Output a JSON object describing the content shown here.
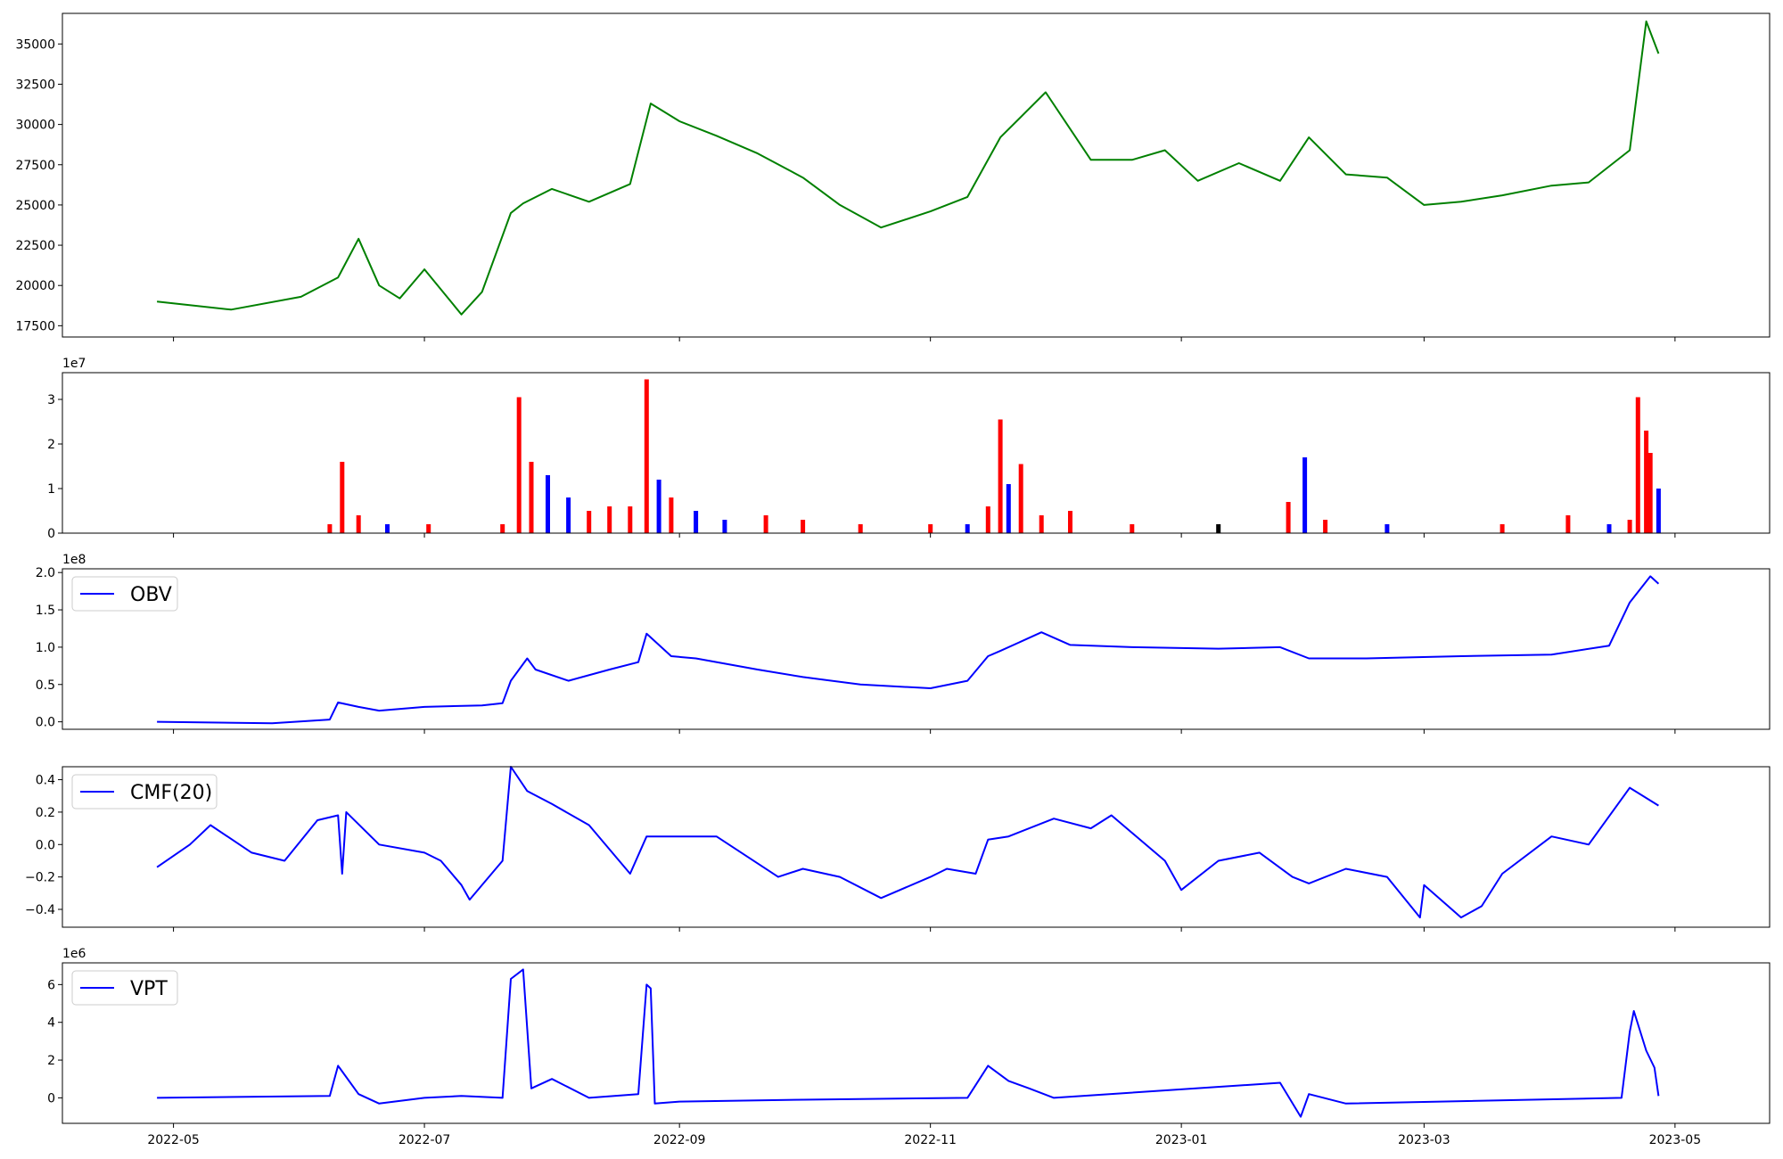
{
  "chart_data": [
    {
      "type": "line",
      "panel": "price",
      "line_color": "#008000",
      "ylim": [
        16800,
        36900
      ],
      "yticks": [
        17500,
        20000,
        22500,
        25000,
        27500,
        30000,
        32500,
        35000
      ],
      "ytick_labels": [
        "17500",
        "20000",
        "22500",
        "25000",
        "27500",
        "30000",
        "32500",
        "35000"
      ],
      "x": [
        "2022-04-27",
        "2022-05-15",
        "2022-06-01",
        "2022-06-10",
        "2022-06-15",
        "2022-06-20",
        "2022-06-25",
        "2022-07-01",
        "2022-07-10",
        "2022-07-15",
        "2022-07-22",
        "2022-07-25",
        "2022-08-01",
        "2022-08-10",
        "2022-08-20",
        "2022-08-25",
        "2022-09-01",
        "2022-09-10",
        "2022-09-20",
        "2022-10-01",
        "2022-10-10",
        "2022-10-20",
        "2022-11-01",
        "2022-11-10",
        "2022-11-18",
        "2022-11-29",
        "2022-12-10",
        "2022-12-20",
        "2022-12-28",
        "2023-01-05",
        "2023-01-15",
        "2023-01-25",
        "2023-02-01",
        "2023-02-10",
        "2023-02-20",
        "2023-03-01",
        "2023-03-10",
        "2023-03-20",
        "2023-04-01",
        "2023-04-10",
        "2023-04-20",
        "2023-04-24",
        "2023-04-27"
      ],
      "values": [
        19000,
        18500,
        19300,
        20500,
        22900,
        20000,
        19200,
        21000,
        18200,
        19600,
        24500,
        25100,
        26000,
        25200,
        26300,
        31300,
        30200,
        29300,
        28200,
        26700,
        25000,
        23600,
        24600,
        25500,
        29200,
        32000,
        27800,
        27800,
        28400,
        26500,
        27600,
        26500,
        29200,
        26900,
        26700,
        25000,
        25200,
        25600,
        26200,
        26400,
        28400,
        36400,
        34400
      ]
    },
    {
      "type": "bar",
      "panel": "volume",
      "offset_label": "1e7",
      "ylim": [
        0,
        3.6
      ],
      "yticks": [
        0,
        1,
        2,
        3
      ],
      "ytick_labels": [
        "0",
        "1",
        "2",
        "3"
      ],
      "colors": {
        "up": "#ff0000",
        "down": "#0000ff",
        "flat": "#000000"
      },
      "x": [
        "2022-06-08",
        "2022-06-11",
        "2022-06-15",
        "2022-06-22",
        "2022-07-02",
        "2022-07-20",
        "2022-07-24",
        "2022-07-27",
        "2022-07-31",
        "2022-08-05",
        "2022-08-10",
        "2022-08-15",
        "2022-08-20",
        "2022-08-24",
        "2022-08-27",
        "2022-08-30",
        "2022-09-05",
        "2022-09-12",
        "2022-09-22",
        "2022-10-01",
        "2022-10-15",
        "2022-11-01",
        "2022-11-10",
        "2022-11-15",
        "2022-11-18",
        "2022-11-20",
        "2022-11-23",
        "2022-11-28",
        "2022-12-05",
        "2022-12-20",
        "2023-01-10",
        "2023-01-27",
        "2023-01-31",
        "2023-02-05",
        "2023-02-20",
        "2023-03-20",
        "2023-04-05",
        "2023-04-15",
        "2023-04-20",
        "2023-04-22",
        "2023-04-24",
        "2023-04-25",
        "2023-04-27"
      ],
      "values": [
        0.2,
        1.6,
        0.4,
        0.2,
        0.2,
        0.2,
        3.05,
        1.6,
        1.3,
        0.8,
        0.5,
        0.6,
        0.6,
        3.45,
        1.2,
        0.8,
        0.5,
        0.3,
        0.4,
        0.3,
        0.2,
        0.2,
        0.2,
        0.6,
        2.55,
        1.1,
        1.55,
        0.4,
        0.5,
        0.2,
        0.2,
        0.7,
        1.7,
        0.3,
        0.2,
        0.2,
        0.4,
        0.2,
        0.3,
        3.05,
        2.3,
        1.8,
        1.0
      ],
      "directions": [
        "up",
        "up",
        "up",
        "down",
        "up",
        "up",
        "up",
        "up",
        "down",
        "down",
        "up",
        "up",
        "up",
        "up",
        "down",
        "up",
        "down",
        "down",
        "up",
        "up",
        "up",
        "up",
        "down",
        "up",
        "up",
        "down",
        "up",
        "up",
        "up",
        "up",
        "flat",
        "up",
        "down",
        "up",
        "down",
        "up",
        "up",
        "down",
        "up",
        "up",
        "up",
        "up",
        "down"
      ]
    },
    {
      "type": "line",
      "panel": "obv",
      "legend": "OBV",
      "line_color": "#0000ff",
      "offset_label": "1e8",
      "ylim": [
        -0.1,
        2.05
      ],
      "yticks": [
        0.0,
        0.5,
        1.0,
        1.5,
        2.0
      ],
      "ytick_labels": [
        "0.0",
        "0.5",
        "1.0",
        "1.5",
        "2.0"
      ],
      "x": [
        "2022-04-27",
        "2022-05-25",
        "2022-06-08",
        "2022-06-10",
        "2022-06-15",
        "2022-06-20",
        "2022-07-01",
        "2022-07-15",
        "2022-07-20",
        "2022-07-22",
        "2022-07-26",
        "2022-07-28",
        "2022-08-05",
        "2022-08-15",
        "2022-08-22",
        "2022-08-24",
        "2022-08-30",
        "2022-09-05",
        "2022-09-20",
        "2022-10-01",
        "2022-10-15",
        "2022-11-01",
        "2022-11-10",
        "2022-11-15",
        "2022-11-18",
        "2022-11-28",
        "2022-12-05",
        "2022-12-20",
        "2023-01-10",
        "2023-01-25",
        "2023-02-01",
        "2023-02-15",
        "2023-03-10",
        "2023-04-01",
        "2023-04-15",
        "2023-04-20",
        "2023-04-25",
        "2023-04-27"
      ],
      "values": [
        0.0,
        -0.02,
        0.03,
        0.26,
        0.2,
        0.15,
        0.2,
        0.22,
        0.25,
        0.55,
        0.85,
        0.7,
        0.55,
        0.7,
        0.8,
        1.18,
        0.88,
        0.85,
        0.7,
        0.6,
        0.5,
        0.45,
        0.55,
        0.88,
        0.95,
        1.2,
        1.03,
        1.0,
        0.98,
        1.0,
        0.85,
        0.85,
        0.88,
        0.9,
        1.02,
        1.6,
        1.95,
        1.85
      ]
    },
    {
      "type": "line",
      "panel": "cmf",
      "legend": "CMF(20)",
      "line_color": "#0000ff",
      "ylim": [
        -0.51,
        0.48
      ],
      "yticks": [
        -0.4,
        -0.2,
        0.0,
        0.2,
        0.4
      ],
      "ytick_labels": [
        "−0.4",
        "−0.2",
        "0.0",
        "0.2",
        "0.4"
      ],
      "x": [
        "2022-04-27",
        "2022-05-05",
        "2022-05-10",
        "2022-05-20",
        "2022-05-28",
        "2022-06-05",
        "2022-06-10",
        "2022-06-11",
        "2022-06-12",
        "2022-06-20",
        "2022-07-01",
        "2022-07-05",
        "2022-07-10",
        "2022-07-12",
        "2022-07-20",
        "2022-07-22",
        "2022-07-26",
        "2022-08-01",
        "2022-08-10",
        "2022-08-20",
        "2022-08-24",
        "2022-09-01",
        "2022-09-10",
        "2022-09-25",
        "2022-10-01",
        "2022-10-10",
        "2022-10-20",
        "2022-11-01",
        "2022-11-05",
        "2022-11-12",
        "2022-11-15",
        "2022-11-20",
        "2022-12-01",
        "2022-12-10",
        "2022-12-15",
        "2022-12-28",
        "2023-01-01",
        "2023-01-10",
        "2023-01-20",
        "2023-01-28",
        "2023-02-01",
        "2023-02-10",
        "2023-02-20",
        "2023-02-28",
        "2023-03-01",
        "2023-03-10",
        "2023-03-15",
        "2023-03-20",
        "2023-04-01",
        "2023-04-10",
        "2023-04-20",
        "2023-04-27"
      ],
      "values": [
        -0.14,
        0.0,
        0.12,
        -0.05,
        -0.1,
        0.15,
        0.18,
        -0.18,
        0.2,
        0.0,
        -0.05,
        -0.1,
        -0.25,
        -0.34,
        -0.1,
        0.48,
        0.33,
        0.25,
        0.12,
        -0.18,
        0.05,
        0.05,
        0.05,
        -0.2,
        -0.15,
        -0.2,
        -0.33,
        -0.2,
        -0.15,
        -0.18,
        0.03,
        0.05,
        0.16,
        0.1,
        0.18,
        -0.1,
        -0.28,
        -0.1,
        -0.05,
        -0.2,
        -0.24,
        -0.15,
        -0.2,
        -0.45,
        -0.25,
        -0.45,
        -0.38,
        -0.18,
        0.05,
        0.0,
        0.35,
        0.24
      ]
    },
    {
      "type": "line",
      "panel": "vpt",
      "legend": "VPT",
      "line_color": "#0000ff",
      "offset_label": "1e6",
      "ylim": [
        -1.35,
        7.15
      ],
      "yticks": [
        0,
        2,
        4,
        6
      ],
      "ytick_labels": [
        "0",
        "2",
        "4",
        "6"
      ],
      "x": [
        "2022-04-27",
        "2022-06-08",
        "2022-06-10",
        "2022-06-15",
        "2022-06-20",
        "2022-07-01",
        "2022-07-10",
        "2022-07-20",
        "2022-07-22",
        "2022-07-25",
        "2022-07-27",
        "2022-08-01",
        "2022-08-10",
        "2022-08-22",
        "2022-08-24",
        "2022-08-25",
        "2022-08-26",
        "2022-09-01",
        "2022-10-01",
        "2022-11-10",
        "2022-11-15",
        "2022-11-20",
        "2022-11-25",
        "2022-12-01",
        "2023-01-25",
        "2023-01-30",
        "2023-02-01",
        "2023-02-10",
        "2023-04-18",
        "2023-04-20",
        "2023-04-21",
        "2023-04-24",
        "2023-04-26",
        "2023-04-27"
      ],
      "values": [
        0.0,
        0.1,
        1.7,
        0.2,
        -0.3,
        0.0,
        0.1,
        0.0,
        6.3,
        6.8,
        0.5,
        1.0,
        0.0,
        0.2,
        6.0,
        5.8,
        -0.3,
        -0.2,
        -0.1,
        0.0,
        1.7,
        0.9,
        0.5,
        0.0,
        0.8,
        -1.0,
        0.2,
        -0.3,
        0.0,
        3.5,
        4.6,
        2.5,
        1.6,
        0.1
      ]
    }
  ],
  "x_axis": {
    "ticks": [
      "2022-05-01",
      "2022-07-01",
      "2022-09-01",
      "2022-11-01",
      "2023-01-01",
      "2023-03-01",
      "2023-05-01"
    ],
    "tick_labels": [
      "2022-05",
      "2022-07",
      "2022-09",
      "2022-11",
      "2023-01",
      "2023-03",
      "2023-05"
    ]
  }
}
